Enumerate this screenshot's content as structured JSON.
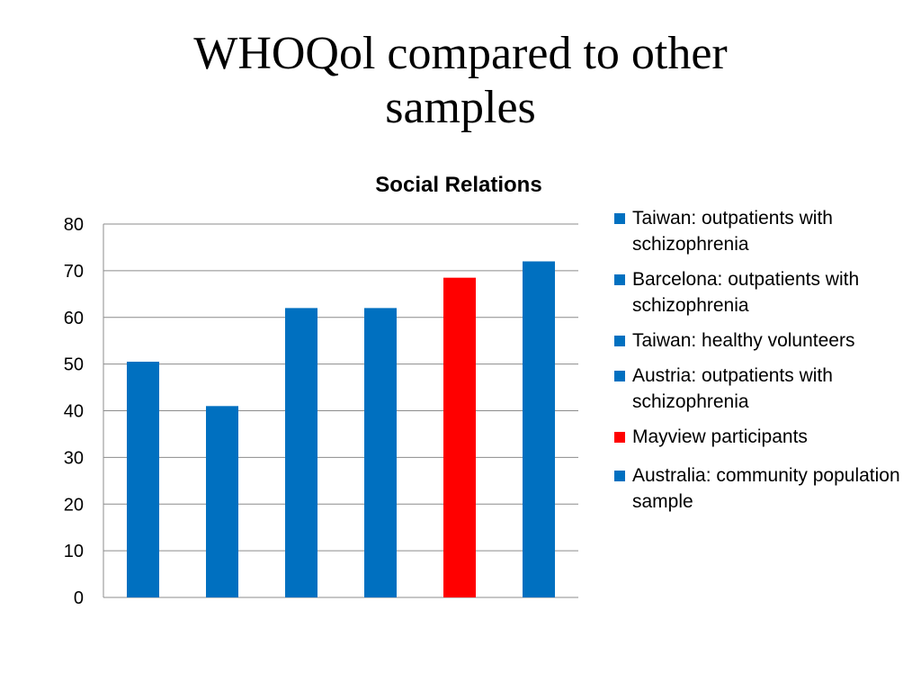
{
  "slide": {
    "title_line1": "WHOQol compared to other",
    "title_line2": "samples"
  },
  "chart_data": {
    "type": "bar",
    "title": "Social Relations",
    "xlabel": "",
    "ylabel": "",
    "ylim": [
      0,
      80
    ],
    "yticks": [
      0,
      10,
      20,
      30,
      40,
      50,
      60,
      70,
      80
    ],
    "grid": true,
    "legend_position": "right",
    "categories": [
      "Taiwan: outpatients with schizophrenia",
      "Barcelona: outpatients with schizophrenia",
      "Taiwan: healthy volunteers",
      "Austria: outpatients with schizophrenia",
      "Mayview participants",
      "Australia: community population sample"
    ],
    "values": [
      50.5,
      41,
      62,
      62,
      68.5,
      72
    ],
    "colors": [
      "#0070C0",
      "#0070C0",
      "#0070C0",
      "#0070C0",
      "#FF0000",
      "#0070C0"
    ]
  }
}
